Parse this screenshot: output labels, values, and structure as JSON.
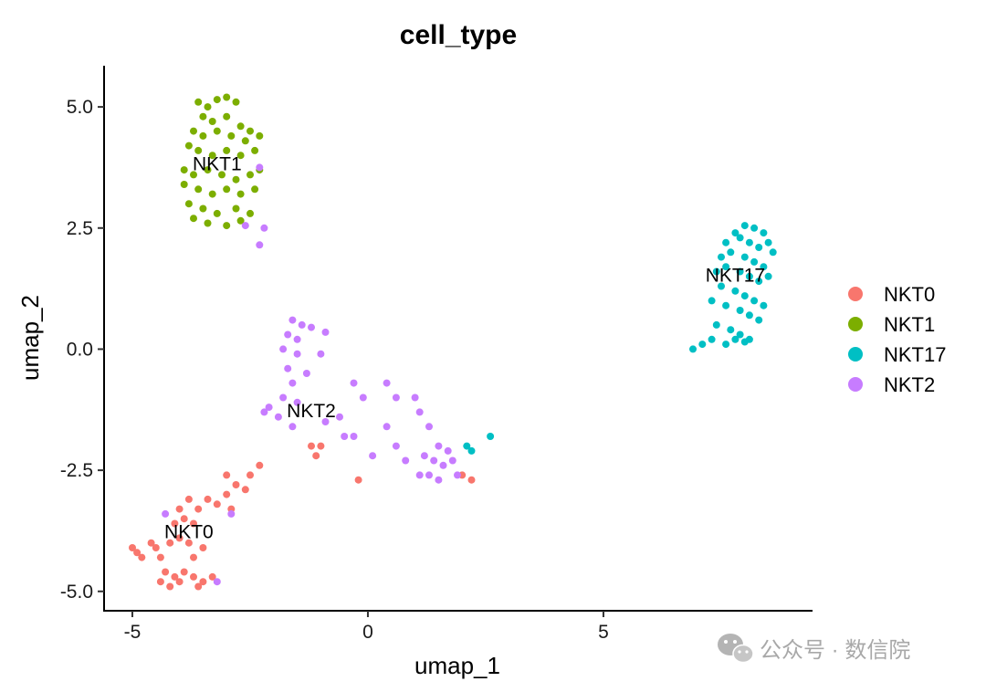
{
  "chart_data": {
    "type": "scatter",
    "title": "cell_type",
    "xlabel": "umap_1",
    "ylabel": "umap_2",
    "xlim": [
      -5.6,
      9.4
    ],
    "ylim": [
      -5.4,
      5.85
    ],
    "x_ticks": [
      -5,
      0,
      5
    ],
    "x_tick_labels": [
      "-5",
      "0",
      "5"
    ],
    "y_ticks": [
      5.0,
      2.5,
      0.0,
      -2.5,
      -5.0
    ],
    "y_tick_labels": [
      "5.0",
      "2.5",
      "0.0",
      "-2.5",
      "-5.0"
    ],
    "grid": false,
    "legend_position": "right",
    "series": [
      {
        "name": "NKT0",
        "color": "#F8766D",
        "label_at": [
          -3.8,
          -3.8
        ],
        "points": [
          [
            -5.0,
            -4.1
          ],
          [
            -4.9,
            -4.2
          ],
          [
            -4.8,
            -4.3
          ],
          [
            -4.6,
            -4.0
          ],
          [
            -4.5,
            -4.1
          ],
          [
            -4.4,
            -4.3
          ],
          [
            -4.2,
            -4.0
          ],
          [
            -4.0,
            -3.9
          ],
          [
            -3.8,
            -4.0
          ],
          [
            -3.7,
            -4.3
          ],
          [
            -3.5,
            -4.1
          ],
          [
            -4.3,
            -4.6
          ],
          [
            -4.1,
            -4.7
          ],
          [
            -3.9,
            -4.6
          ],
          [
            -3.7,
            -4.7
          ],
          [
            -3.5,
            -4.8
          ],
          [
            -4.4,
            -4.8
          ],
          [
            -4.2,
            -4.9
          ],
          [
            -4.0,
            -4.8
          ],
          [
            -3.6,
            -4.9
          ],
          [
            -3.3,
            -4.7
          ],
          [
            -4.1,
            -3.6
          ],
          [
            -3.9,
            -3.5
          ],
          [
            -3.7,
            -3.6
          ],
          [
            -4.0,
            -3.3
          ],
          [
            -3.8,
            -3.1
          ],
          [
            -3.6,
            -3.3
          ],
          [
            -3.4,
            -3.1
          ],
          [
            -3.2,
            -3.2
          ],
          [
            -3.0,
            -3.0
          ],
          [
            -2.9,
            -3.3
          ],
          [
            -3.0,
            -2.6
          ],
          [
            -2.8,
            -2.8
          ],
          [
            -2.6,
            -2.9
          ],
          [
            -2.5,
            -2.6
          ],
          [
            -2.3,
            -2.4
          ],
          [
            -1.2,
            -2.0
          ],
          [
            -1.1,
            -2.2
          ],
          [
            -1.0,
            -2.0
          ],
          [
            -0.2,
            -2.7
          ],
          [
            2.0,
            -2.6
          ],
          [
            2.2,
            -2.7
          ]
        ]
      },
      {
        "name": "NKT1",
        "color": "#7CAE00",
        "label_at": [
          -3.2,
          3.8
        ],
        "points": [
          [
            -3.6,
            5.1
          ],
          [
            -3.4,
            5.0
          ],
          [
            -3.2,
            5.15
          ],
          [
            -3.0,
            5.2
          ],
          [
            -2.8,
            5.1
          ],
          [
            -3.5,
            4.8
          ],
          [
            -3.3,
            4.7
          ],
          [
            -3.0,
            4.8
          ],
          [
            -2.7,
            4.6
          ],
          [
            -2.5,
            4.5
          ],
          [
            -3.7,
            4.5
          ],
          [
            -3.5,
            4.4
          ],
          [
            -3.2,
            4.5
          ],
          [
            -2.9,
            4.4
          ],
          [
            -2.6,
            4.3
          ],
          [
            -2.3,
            4.4
          ],
          [
            -3.8,
            4.2
          ],
          [
            -3.6,
            4.1
          ],
          [
            -3.3,
            4.0
          ],
          [
            -3.0,
            4.1
          ],
          [
            -2.7,
            4.0
          ],
          [
            -2.4,
            4.1
          ],
          [
            -3.9,
            3.7
          ],
          [
            -3.7,
            3.6
          ],
          [
            -3.4,
            3.7
          ],
          [
            -3.1,
            3.6
          ],
          [
            -2.8,
            3.5
          ],
          [
            -2.5,
            3.6
          ],
          [
            -2.3,
            3.7
          ],
          [
            -3.9,
            3.4
          ],
          [
            -3.6,
            3.3
          ],
          [
            -3.3,
            3.2
          ],
          [
            -3.0,
            3.3
          ],
          [
            -2.7,
            3.2
          ],
          [
            -2.4,
            3.3
          ],
          [
            -3.8,
            3.0
          ],
          [
            -3.5,
            2.9
          ],
          [
            -3.2,
            2.8
          ],
          [
            -2.8,
            2.9
          ],
          [
            -2.5,
            2.8
          ],
          [
            -3.7,
            2.7
          ],
          [
            -3.4,
            2.6
          ],
          [
            -3.0,
            2.55
          ],
          [
            -2.7,
            2.65
          ]
        ]
      },
      {
        "name": "NKT17",
        "color": "#00BFC4",
        "label_at": [
          7.8,
          1.5
        ],
        "points": [
          [
            7.8,
            2.4
          ],
          [
            8.0,
            2.55
          ],
          [
            8.2,
            2.5
          ],
          [
            8.4,
            2.4
          ],
          [
            7.6,
            2.2
          ],
          [
            7.9,
            2.3
          ],
          [
            8.1,
            2.2
          ],
          [
            8.3,
            2.1
          ],
          [
            8.5,
            2.2
          ],
          [
            8.6,
            2.0
          ],
          [
            7.5,
            1.9
          ],
          [
            7.7,
            2.0
          ],
          [
            8.0,
            1.9
          ],
          [
            8.2,
            1.8
          ],
          [
            8.4,
            1.7
          ],
          [
            7.4,
            1.6
          ],
          [
            7.6,
            1.7
          ],
          [
            7.9,
            1.6
          ],
          [
            8.1,
            1.5
          ],
          [
            8.3,
            1.4
          ],
          [
            8.5,
            1.5
          ],
          [
            7.5,
            1.3
          ],
          [
            7.8,
            1.2
          ],
          [
            8.0,
            1.1
          ],
          [
            8.2,
            1.0
          ],
          [
            8.4,
            0.9
          ],
          [
            7.3,
            1.0
          ],
          [
            7.6,
            0.9
          ],
          [
            7.9,
            0.8
          ],
          [
            8.1,
            0.7
          ],
          [
            8.3,
            0.6
          ],
          [
            7.4,
            0.5
          ],
          [
            7.7,
            0.4
          ],
          [
            7.9,
            0.3
          ],
          [
            8.1,
            0.2
          ],
          [
            7.6,
            0.1
          ],
          [
            7.3,
            0.2
          ],
          [
            7.1,
            0.1
          ],
          [
            6.9,
            0.0
          ],
          [
            7.8,
            0.2
          ],
          [
            8.0,
            0.15
          ],
          [
            2.1,
            -2.0
          ],
          [
            2.2,
            -2.1
          ],
          [
            2.6,
            -1.8
          ]
        ]
      },
      {
        "name": "NKT2",
        "color": "#C77CFF",
        "label_at": [
          -1.2,
          -1.3
        ],
        "points": [
          [
            -2.3,
            3.75
          ],
          [
            -2.2,
            2.5
          ],
          [
            -2.3,
            2.15
          ],
          [
            -2.6,
            2.55
          ],
          [
            -1.6,
            0.6
          ],
          [
            -1.4,
            0.5
          ],
          [
            -1.2,
            0.45
          ],
          [
            -1.7,
            0.3
          ],
          [
            -1.5,
            0.2
          ],
          [
            -0.9,
            0.35
          ],
          [
            -1.8,
            0.0
          ],
          [
            -1.5,
            -0.1
          ],
          [
            -1.0,
            -0.1
          ],
          [
            -1.7,
            -0.4
          ],
          [
            -1.3,
            -0.5
          ],
          [
            -1.6,
            -0.7
          ],
          [
            -1.8,
            -1.0
          ],
          [
            -1.5,
            -1.1
          ],
          [
            -2.1,
            -1.2
          ],
          [
            -2.2,
            -1.3
          ],
          [
            -1.9,
            -1.4
          ],
          [
            -1.6,
            -1.6
          ],
          [
            -0.9,
            -1.5
          ],
          [
            -0.6,
            -1.4
          ],
          [
            -0.3,
            -0.7
          ],
          [
            -0.1,
            -1.0
          ],
          [
            -0.5,
            -1.8
          ],
          [
            -0.3,
            -1.8
          ],
          [
            0.1,
            -2.2
          ],
          [
            0.4,
            -0.7
          ],
          [
            0.6,
            -1.0
          ],
          [
            0.4,
            -1.6
          ],
          [
            0.6,
            -2.0
          ],
          [
            0.8,
            -2.3
          ],
          [
            1.0,
            -1.0
          ],
          [
            1.1,
            -1.3
          ],
          [
            1.3,
            -1.6
          ],
          [
            1.2,
            -2.2
          ],
          [
            1.4,
            -2.3
          ],
          [
            1.5,
            -2.0
          ],
          [
            1.6,
            -2.4
          ],
          [
            1.7,
            -2.1
          ],
          [
            1.8,
            -2.3
          ],
          [
            1.9,
            -2.6
          ],
          [
            1.1,
            -2.6
          ],
          [
            1.3,
            -2.6
          ],
          [
            1.5,
            -2.7
          ],
          [
            -2.9,
            -3.4
          ],
          [
            -3.2,
            -4.8
          ],
          [
            -4.3,
            -3.4
          ]
        ]
      }
    ]
  },
  "watermark": {
    "text": "公众号 · 数信院",
    "icon": "wechat-icon"
  }
}
